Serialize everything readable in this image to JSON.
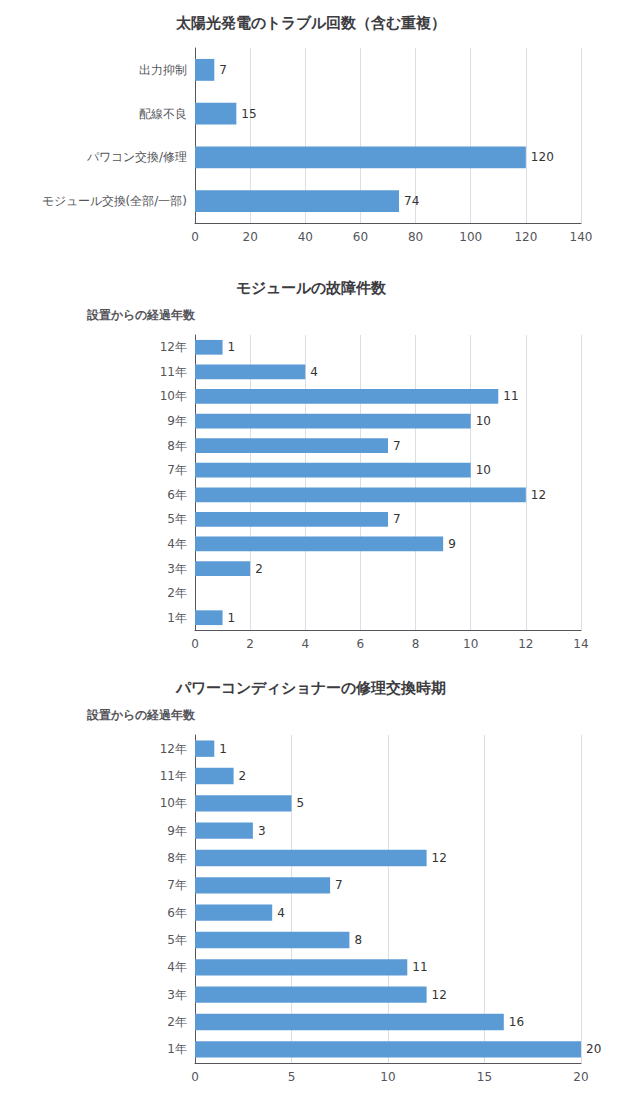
{
  "chart_data": [
    {
      "type": "bar",
      "orientation": "horizontal",
      "title": "太陽光発電のトラブル回数（含む重複）",
      "categories": [
        "モジュール交換(全部/一部)",
        "パワコン交換/修理",
        "配線不良",
        "出力抑制"
      ],
      "values": [
        74,
        120,
        15,
        7
      ],
      "color": "#5B9BD5",
      "xlim": [
        0,
        140
      ],
      "xticks": [
        0,
        20,
        40,
        60,
        80,
        100,
        120,
        140
      ],
      "grid": "x",
      "data_labels": true
    },
    {
      "type": "bar",
      "orientation": "horizontal",
      "title": "モジュールの故障件数",
      "ylabel": "設置からの経過年数",
      "categories": [
        "1年",
        "2年",
        "3年",
        "4年",
        "5年",
        "6年",
        "7年",
        "8年",
        "9年",
        "10年",
        "11年",
        "12年"
      ],
      "values": [
        1,
        0,
        2,
        9,
        7,
        12,
        10,
        7,
        10,
        11,
        4,
        1
      ],
      "color": "#5B9BD5",
      "xlim": [
        0,
        14
      ],
      "xticks": [
        0,
        2,
        4,
        6,
        8,
        10,
        12,
        14
      ],
      "grid": "x",
      "data_labels": true
    },
    {
      "type": "bar",
      "orientation": "horizontal",
      "title": "パワーコンディショナーの修理交換時期",
      "ylabel": "設置からの経過年数",
      "categories": [
        "1年",
        "2年",
        "3年",
        "4年",
        "5年",
        "6年",
        "7年",
        "8年",
        "9年",
        "10年",
        "11年",
        "12年"
      ],
      "values": [
        20,
        16,
        12,
        11,
        8,
        4,
        7,
        12,
        3,
        5,
        2,
        1
      ],
      "color": "#5B9BD5",
      "xlim": [
        0,
        20
      ],
      "xticks": [
        0,
        5,
        10,
        15,
        20
      ],
      "grid": "x",
      "data_labels": true
    }
  ]
}
